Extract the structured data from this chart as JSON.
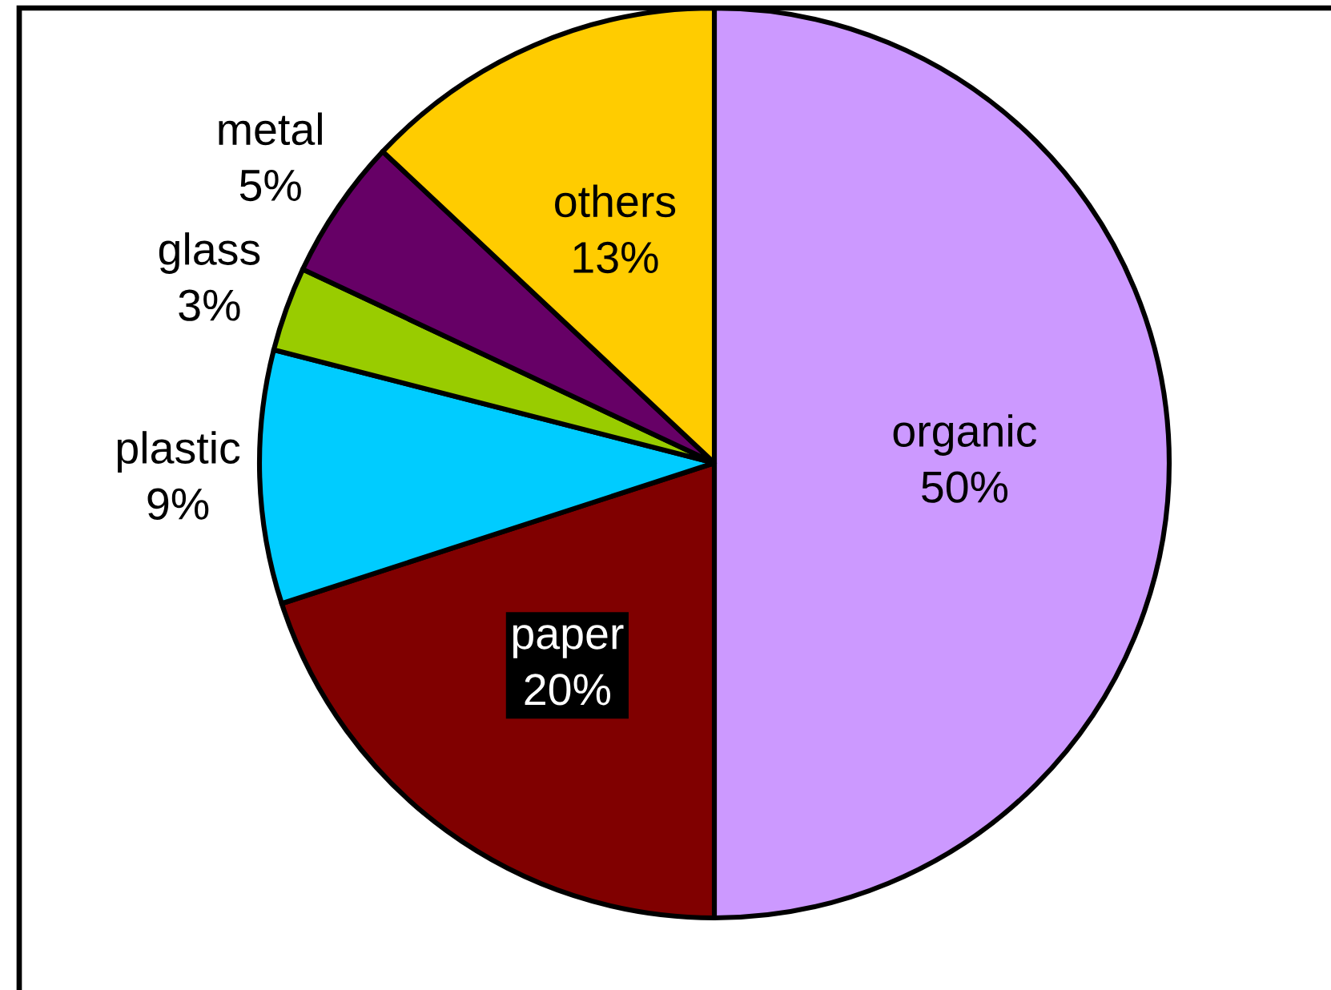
{
  "chart_data": {
    "type": "pie",
    "categories": [
      "organic",
      "paper",
      "plastic",
      "glass",
      "metal",
      "others"
    ],
    "values": [
      50,
      20,
      9,
      3,
      5,
      13
    ],
    "colors": [
      "#cc99ff",
      "#800000",
      "#00ccff",
      "#99cc00",
      "#660066",
      "#ffcc00"
    ],
    "value_labels": [
      "50%",
      "20%",
      "9%",
      "3%",
      "5%",
      "13%"
    ]
  }
}
